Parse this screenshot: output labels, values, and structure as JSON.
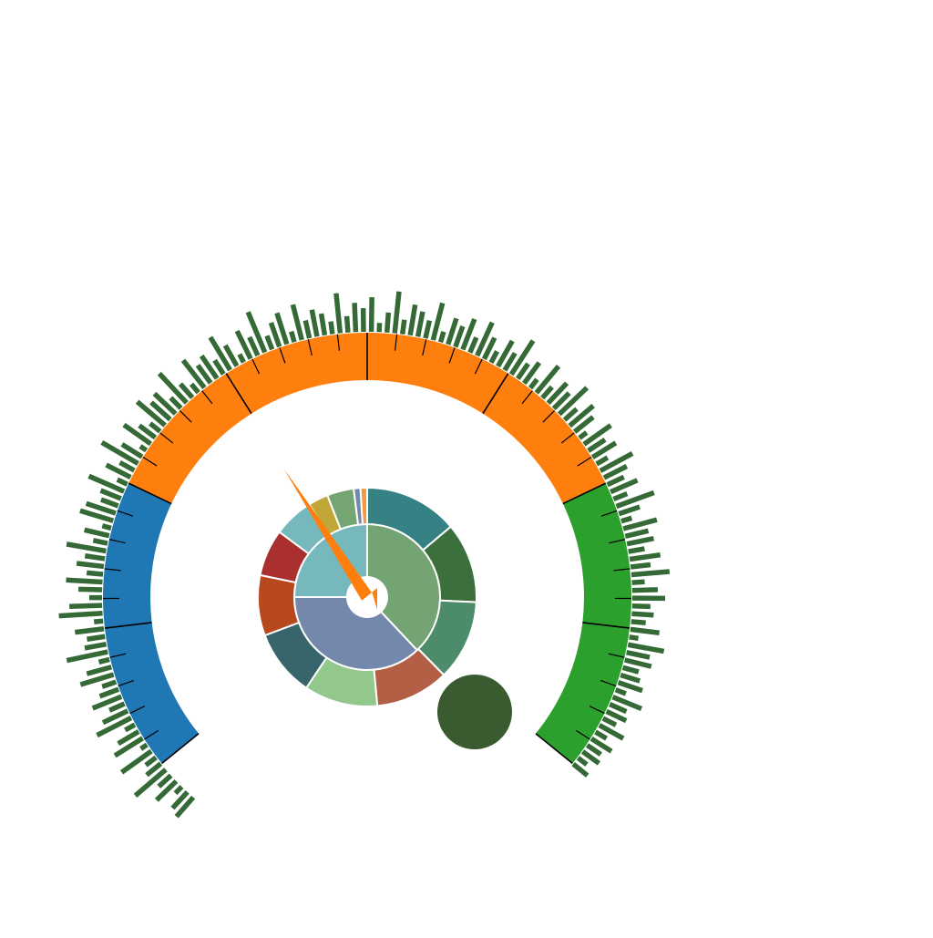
{
  "chart_data": {
    "type": "gauge",
    "colors": {
      "low_band": "#1f77b4",
      "mid_band": "#ff7f0e",
      "high_band": "#2ca02c",
      "spike_bars": "#356a37",
      "needle": "#ff7f0e",
      "ticks": "#000000",
      "knob": "#3a5a30"
    },
    "gauge": {
      "bands": [
        {
          "name": "low",
          "from": 0,
          "to": 25
        },
        {
          "name": "mid",
          "from": 25,
          "to": 75
        },
        {
          "name": "high",
          "from": 75,
          "to": 100
        }
      ],
      "needle_value": 38,
      "major_tick_step": 12.5,
      "minor_ticks_per_major": 5
    },
    "radial_bars": {
      "values": [
        28,
        24,
        10,
        30,
        18,
        44,
        20,
        14,
        40,
        8,
        36,
        26,
        12,
        42,
        30,
        18,
        34,
        22,
        16,
        38,
        28,
        12,
        46,
        24,
        20,
        32,
        10,
        48,
        36,
        14,
        26,
        40,
        18,
        30,
        22,
        44,
        16,
        28,
        10,
        38,
        34,
        20,
        24,
        42,
        12,
        30,
        18,
        46,
        26,
        8,
        36,
        22,
        14,
        40,
        28,
        32,
        16,
        44,
        20,
        12,
        38,
        24,
        30,
        18,
        42,
        26,
        10,
        34,
        22,
        48,
        16,
        28,
        36,
        12,
        40,
        20,
        30,
        24,
        14,
        44,
        18,
        32,
        26,
        38,
        10,
        22,
        46,
        16,
        34,
        28,
        20,
        42,
        12,
        30,
        24,
        36,
        18,
        40,
        26,
        14,
        32,
        22,
        44,
        20,
        28,
        12,
        38,
        16,
        30,
        24,
        42,
        18,
        34,
        26,
        10,
        36,
        22,
        30,
        14,
        40,
        28,
        20,
        32,
        16,
        44,
        24,
        12,
        38,
        26,
        30,
        18,
        34,
        22,
        42,
        14,
        28,
        36,
        20,
        24,
        16,
        32,
        10,
        40,
        26,
        30,
        18,
        22,
        28,
        12,
        34,
        20,
        24,
        16,
        30,
        14,
        26,
        18,
        22,
        12,
        20
      ]
    },
    "sunburst": {
      "inner": [
        {
          "value": 38,
          "color": "#74a474"
        },
        {
          "value": 37,
          "color": "#7388ab"
        },
        {
          "value": 25,
          "color": "#77b8bd"
        }
      ],
      "outer": [
        {
          "value": 14,
          "color": "#358183"
        },
        {
          "value": 12,
          "color": "#3b6f3c"
        },
        {
          "value": 12,
          "color": "#4c8c6b"
        },
        {
          "value": 11,
          "color": "#b25f45"
        },
        {
          "value": 11,
          "color": "#93c88c"
        },
        {
          "value": 10,
          "color": "#38656b"
        },
        {
          "value": 9,
          "color": "#b8491f"
        },
        {
          "value": 7,
          "color": "#aa2f2f"
        },
        {
          "value": 6,
          "color": "#77b8bd"
        },
        {
          "value": 3,
          "color": "#c0a737"
        },
        {
          "value": 4,
          "color": "#76a574"
        },
        {
          "value": 1,
          "color": "#7388ab"
        },
        {
          "value": 1,
          "color": "#f29a3f"
        }
      ]
    }
  }
}
